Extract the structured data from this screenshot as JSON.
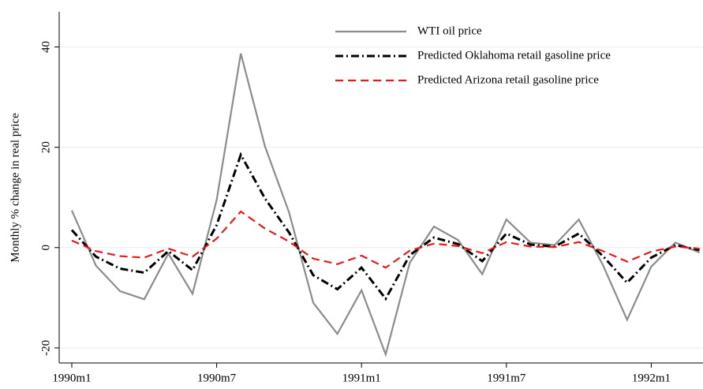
{
  "chart_data": {
    "type": "line",
    "y_label": "Monthly % change in real price",
    "categories": [
      "1990m1",
      null,
      null,
      null,
      null,
      null,
      "1990m7",
      null,
      null,
      null,
      null,
      null,
      "1991m1",
      null,
      null,
      null,
      null,
      null,
      "1991m7",
      null,
      null,
      null,
      null,
      null,
      "1992m1",
      null,
      null
    ],
    "series": [
      {
        "name": "WTI oil price",
        "color": "#8c8c8c",
        "dash": "solid",
        "values": [
          7.4,
          -3.6,
          -8.7,
          -10.3,
          -1.2,
          -9.2,
          9.5,
          38.7,
          20.2,
          7,
          -11,
          -17.2,
          -8.5,
          -21.3,
          -3,
          4.2,
          1.5,
          -5.3,
          5.6,
          1,
          0.5,
          5.6,
          -3.5,
          -14.4,
          -3.8,
          1,
          -1
        ]
      },
      {
        "name": "Predicted Oklahoma retail gasoline price",
        "color": "#000000",
        "dash": "dashdot",
        "values": [
          3.5,
          -1.8,
          -4.2,
          -5,
          -0.7,
          -4.5,
          4.5,
          18.5,
          9.8,
          3,
          -5.5,
          -8.3,
          -4,
          -10.2,
          -1.5,
          2,
          0.7,
          -2.7,
          2.8,
          0.6,
          0.2,
          2.8,
          -1.7,
          -7,
          -2,
          0.5,
          -0.5
        ]
      },
      {
        "name": "Predicted Arizona retail gasoline price",
        "color": "#e8191b",
        "dash": "dash",
        "values": [
          1.4,
          -0.7,
          -1.7,
          -2,
          -0.2,
          -1.8,
          1.8,
          7.2,
          3.8,
          1.2,
          -2.2,
          -3.3,
          -1.6,
          -4,
          -0.6,
          0.8,
          0.3,
          -1.1,
          1.1,
          0.2,
          0.1,
          1.1,
          -0.7,
          -2.8,
          -0.8,
          0.2,
          -0.2
        ]
      }
    ],
    "ylim": [
      -23,
      47
    ],
    "yticks": [
      -20,
      0,
      20,
      40
    ],
    "grid": true,
    "legend": "top-right"
  }
}
